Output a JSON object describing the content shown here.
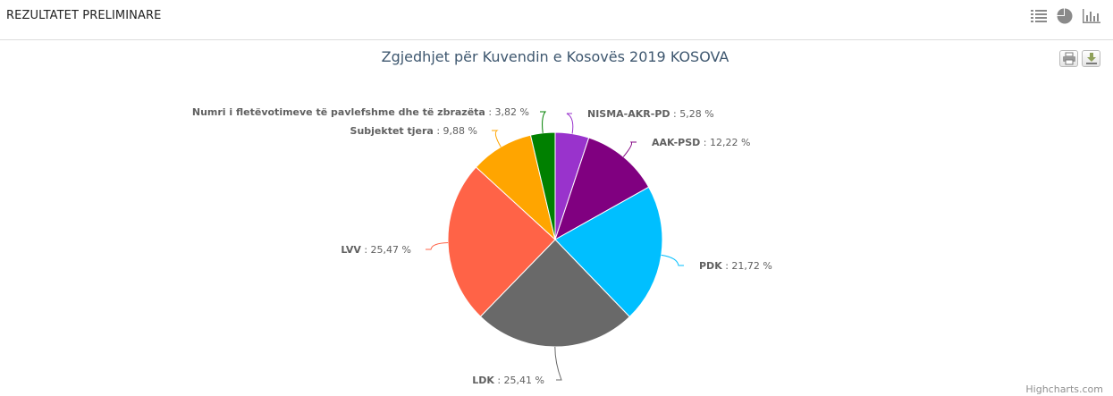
{
  "header": {
    "title": "REZULTATET PRELIMINARE",
    "view_buttons": [
      {
        "icon": "list-icon"
      },
      {
        "icon": "pie-chart-icon"
      },
      {
        "icon": "bar-chart-icon"
      }
    ]
  },
  "toolbar": {
    "print_icon": "print-icon",
    "download_icon": "download-icon"
  },
  "credits": "Highcharts.com",
  "chart_data": {
    "type": "pie",
    "title": "Zgjedhjet për Kuvendin e Kosovës 2019 KOSOVA",
    "value_suffix": " %",
    "slices": [
      {
        "name": "NISMA-AKR-PD",
        "value": 5.28,
        "label": "5,28",
        "color": "#9933cc"
      },
      {
        "name": "AAK-PSD",
        "value": 12.22,
        "label": "12,22",
        "color": "#800080"
      },
      {
        "name": "PDK",
        "value": 21.72,
        "label": "21,72",
        "color": "#00bfff"
      },
      {
        "name": "LDK",
        "value": 25.41,
        "label": "25,41",
        "color": "#696969"
      },
      {
        "name": "LVV",
        "value": 25.47,
        "label": "25,47",
        "color": "#ff6347"
      },
      {
        "name": "Subjektet tjera",
        "value": 9.88,
        "label": "9,88",
        "color": "#ffa500"
      },
      {
        "name": "Numri i fletëvotimeve të pavlefshme dhe të zbrazëta",
        "value": 3.82,
        "label": "3,82",
        "color": "#008000"
      }
    ]
  }
}
